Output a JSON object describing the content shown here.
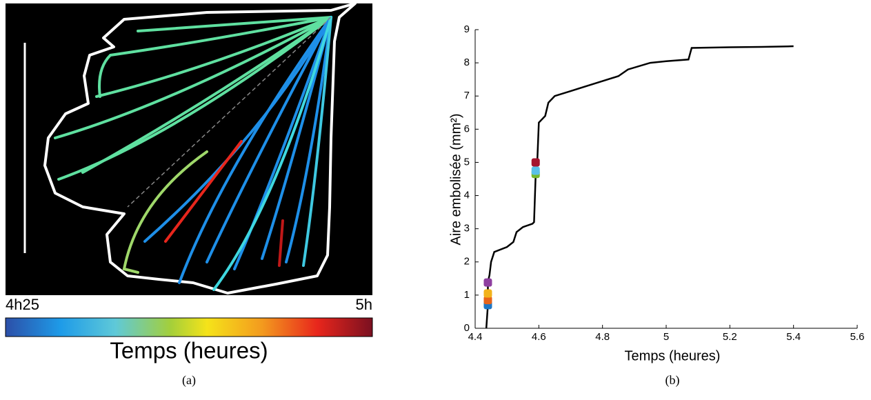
{
  "panel_a": {
    "colorbar_min": "4h25",
    "colorbar_max": "5h",
    "colorbar_label": "Temps (heures)",
    "caption": "(a)"
  },
  "chart_data": {
    "type": "line",
    "caption": "(b)",
    "x_label": "Temps (heures)",
    "y_label": "Aire embolisée (mm²)",
    "xlim": [
      4.4,
      5.6
    ],
    "ylim": [
      0,
      9
    ],
    "xticks": [
      4.4,
      4.6,
      4.8,
      5,
      5.2,
      5.4,
      5.6
    ],
    "yticks": [
      0,
      1,
      2,
      3,
      4,
      5,
      6,
      7,
      8,
      9
    ],
    "series": [
      {
        "color": "#000000",
        "x": [
          4.435,
          4.44,
          4.44,
          4.445,
          4.45,
          4.46,
          4.5,
          4.52,
          4.53,
          4.55,
          4.58,
          4.585,
          4.59,
          4.595,
          4.6,
          4.62,
          4.63,
          4.65,
          4.7,
          4.8,
          4.85,
          4.88,
          4.95,
          5.0,
          5.07,
          5.08,
          5.2,
          5.3,
          5.4
        ],
        "values": [
          0,
          0.7,
          1.4,
          1.6,
          2.0,
          2.3,
          2.45,
          2.6,
          2.9,
          3.05,
          3.15,
          3.2,
          4.6,
          5.0,
          6.2,
          6.4,
          6.8,
          7.0,
          7.15,
          7.45,
          7.6,
          7.8,
          8.0,
          8.05,
          8.1,
          8.45,
          8.47,
          8.48,
          8.5
        ]
      },
      {
        "type": "scatter",
        "colors": [
          "#1f77c4",
          "#e8641a",
          "#f2b31c",
          "#8e3fa0",
          "#77b82e",
          "#5bc0e8",
          "#a5142e"
        ],
        "x": [
          4.44,
          4.44,
          4.44,
          4.44,
          4.59,
          4.59,
          4.59
        ],
        "values": [
          0.7,
          0.85,
          1.05,
          1.38,
          4.65,
          4.75,
          5.0
        ]
      }
    ]
  }
}
